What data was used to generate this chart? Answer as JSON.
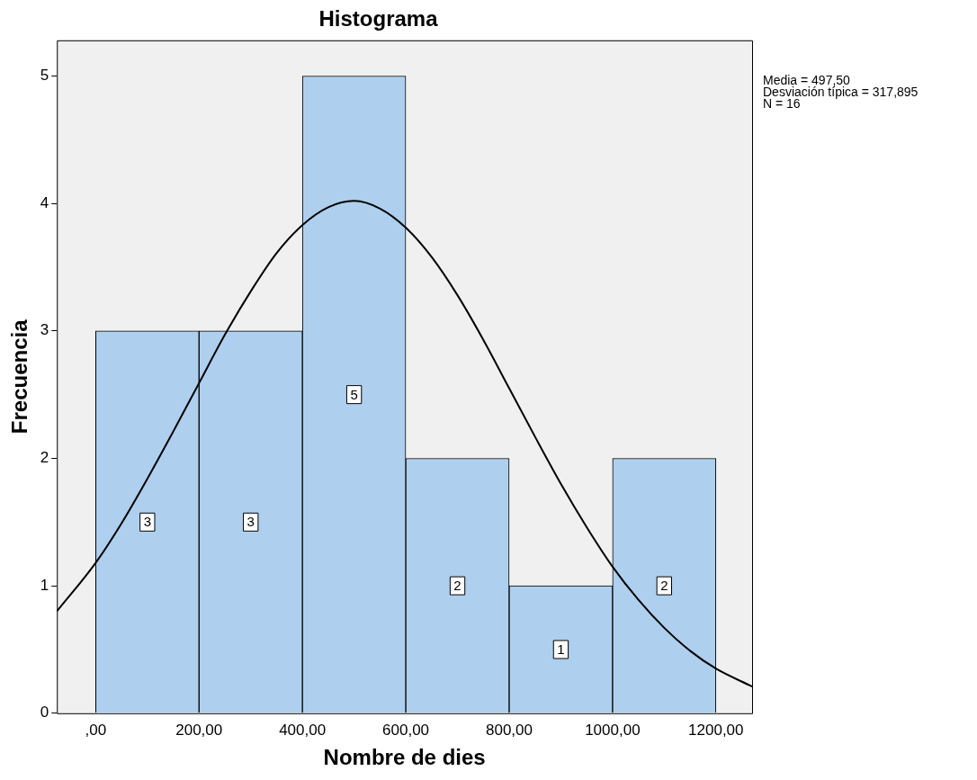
{
  "chart_data": {
    "type": "histogram",
    "title": "Histograma",
    "xlabel": "Nombre de dies",
    "ylabel": "Frecuencia",
    "bins": [
      0,
      200,
      400,
      600,
      800,
      1000,
      1200
    ],
    "values": [
      3,
      3,
      5,
      2,
      1,
      2
    ],
    "color": "#aecfee",
    "value_labels": [
      "3",
      "3",
      "5",
      "2",
      "1",
      "2"
    ],
    "series": [
      {
        "type": "line",
        "color": "#000000",
        "x": [
          -75,
          0,
          50,
          100,
          150,
          200,
          250,
          300,
          350,
          400,
          450,
          500,
          550,
          600,
          650,
          700,
          750,
          800,
          850,
          900,
          950,
          1000,
          1050,
          1100,
          1150,
          1200,
          1270
        ],
        "values": [
          0.8,
          1.18,
          1.49,
          1.84,
          2.21,
          2.59,
          2.97,
          3.31,
          3.61,
          3.83,
          3.97,
          4.02,
          3.96,
          3.81,
          3.58,
          3.28,
          2.93,
          2.55,
          2.17,
          1.8,
          1.46,
          1.15,
          0.89,
          0.67,
          0.49,
          0.35,
          0.21
        ]
      }
    ],
    "xlim": [
      -75,
      1270
    ],
    "xticks": [
      {
        "value": 0,
        "label": ",00"
      },
      {
        "value": 200,
        "label": "200,00"
      },
      {
        "value": 400,
        "label": "400,00"
      },
      {
        "value": 600,
        "label": "600,00"
      },
      {
        "value": 800,
        "label": "800,00"
      },
      {
        "value": 1000,
        "label": "1000,00"
      },
      {
        "value": 1200,
        "label": "1200,00"
      }
    ],
    "ylim": [
      0,
      5.28
    ],
    "yticks": [
      0,
      1,
      2,
      3,
      4,
      5
    ],
    "grid": false,
    "legend": false,
    "annotations": [
      "Media = 497,50",
      "Desviación típica = 317,895",
      "N = 16"
    ]
  }
}
